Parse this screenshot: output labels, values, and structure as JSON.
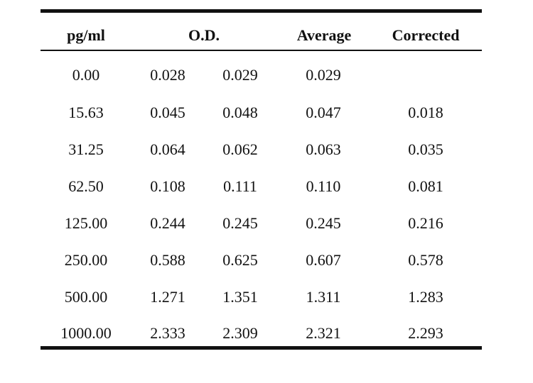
{
  "table": {
    "headers": {
      "concentration": "pg/ml",
      "od": "O.D.",
      "average": "Average",
      "corrected": "Corrected"
    },
    "rows": [
      {
        "conc": "0.00",
        "od1": "0.028",
        "od2": "0.029",
        "avg": "0.029",
        "corr": ""
      },
      {
        "conc": "15.63",
        "od1": "0.045",
        "od2": "0.048",
        "avg": "0.047",
        "corr": "0.018"
      },
      {
        "conc": "31.25",
        "od1": "0.064",
        "od2": "0.062",
        "avg": "0.063",
        "corr": "0.035"
      },
      {
        "conc": "62.50",
        "od1": "0.108",
        "od2": "0.111",
        "avg": "0.110",
        "corr": "0.081"
      },
      {
        "conc": "125.00",
        "od1": "0.244",
        "od2": "0.245",
        "avg": "0.245",
        "corr": "0.216"
      },
      {
        "conc": "250.00",
        "od1": "0.588",
        "od2": "0.625",
        "avg": "0.607",
        "corr": "0.578"
      },
      {
        "conc": "500.00",
        "od1": "1.271",
        "od2": "1.351",
        "avg": "1.311",
        "corr": "1.283"
      },
      {
        "conc": "1000.00",
        "od1": "2.333",
        "od2": "2.309",
        "avg": "2.321",
        "corr": "2.293"
      }
    ]
  }
}
